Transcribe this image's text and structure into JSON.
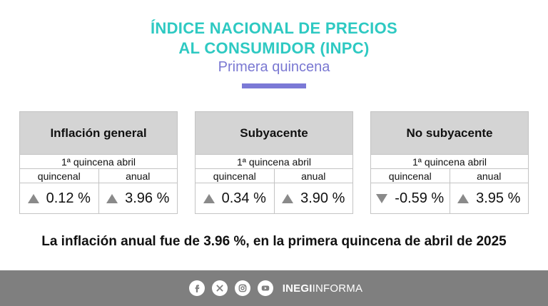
{
  "header": {
    "title_line1": "ÍNDICE NACIONAL DE PRECIOS",
    "title_line2": "AL CONSUMIDOR (INPC)",
    "subtitle": "Primera quincena"
  },
  "cards": [
    {
      "title": "Inflación general",
      "period": "1ª quincena abril",
      "label_left": "quincenal",
      "label_right": "anual",
      "value_left": "0.12 %",
      "value_right": "3.96 %",
      "dir_left": "up",
      "dir_right": "up"
    },
    {
      "title": "Subyacente",
      "period": "1ª quincena abril",
      "label_left": "quincenal",
      "label_right": "anual",
      "value_left": "0.34 %",
      "value_right": "3.90 %",
      "dir_left": "up",
      "dir_right": "up"
    },
    {
      "title": "No subyacente",
      "period": "1ª quincena abril",
      "label_left": "quincenal",
      "label_right": "anual",
      "value_left": "-0.59 %",
      "value_right": "3.95 %",
      "dir_left": "down",
      "dir_right": "up"
    }
  ],
  "statement": "La inflación anual fue de 3.96 %, en la primera quincena de abril de 2025",
  "footer": {
    "icons": [
      "facebook-icon",
      "x-icon",
      "instagram-icon",
      "youtube-icon"
    ],
    "brand_bold": "INEGI",
    "brand_light": "INFORMA"
  },
  "colors": {
    "title": "#2ec9c2",
    "subtitle": "#7a78d2",
    "accent_bar": "#7b79d6",
    "card_header": "#d4d4d4",
    "footer": "#7f7f7f",
    "arrow": "#8a8a8a"
  }
}
